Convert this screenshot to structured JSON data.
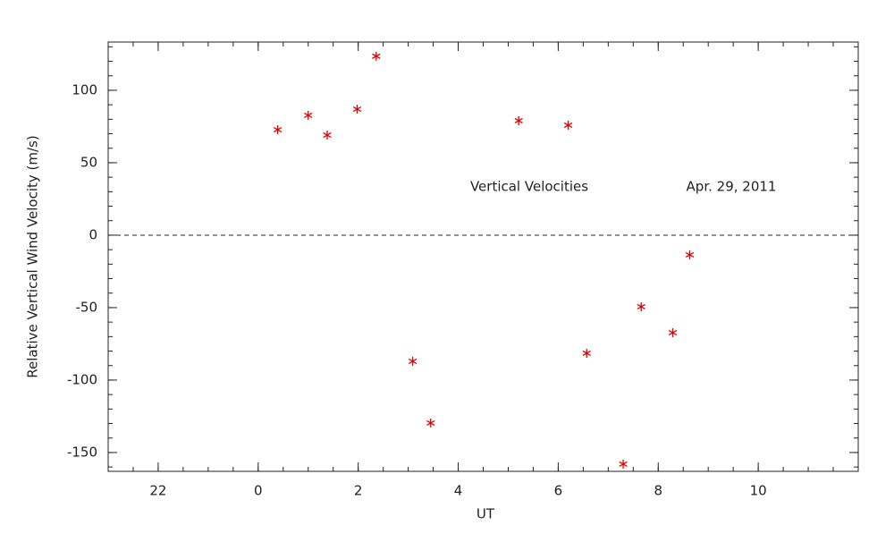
{
  "chart_data": {
    "type": "scatter",
    "xlabel": "UT",
    "ylabel": "Relative Vertical Wind Velocity (m/s)",
    "annotations": [
      "Vertical Velocities",
      "Apr. 29, 2011"
    ],
    "series": [
      {
        "name": "Vertical Velocities",
        "color": "#e00000",
        "x": [
          24.39,
          25.0,
          25.38,
          25.98,
          26.36,
          27.09,
          27.45,
          29.21,
          30.2,
          30.57,
          31.3,
          31.66,
          32.29,
          32.63
        ],
        "values": [
          72.8,
          82.7,
          69.1,
          87,
          123.5,
          -87,
          -129.6,
          79,
          75.9,
          -81.5,
          -158,
          -49.4,
          -67.3,
          -13.6
        ]
      }
    ],
    "xlim": [
      21,
      36
    ],
    "ylim": [
      -163,
      133.3
    ],
    "xticks": [
      22,
      {
        "value": 24,
        "label": "0"
      },
      {
        "value": 26,
        "label": "2"
      },
      {
        "value": 28,
        "label": "4"
      },
      {
        "value": 30,
        "label": "6"
      },
      {
        "value": 32,
        "label": "8"
      },
      {
        "value": 34,
        "label": "10"
      }
    ],
    "yticks": [
      -150,
      -100,
      -50,
      0,
      50,
      100
    ],
    "minor_ticks": {
      "x": 0.5,
      "y": 10
    },
    "reference_line": 0
  }
}
